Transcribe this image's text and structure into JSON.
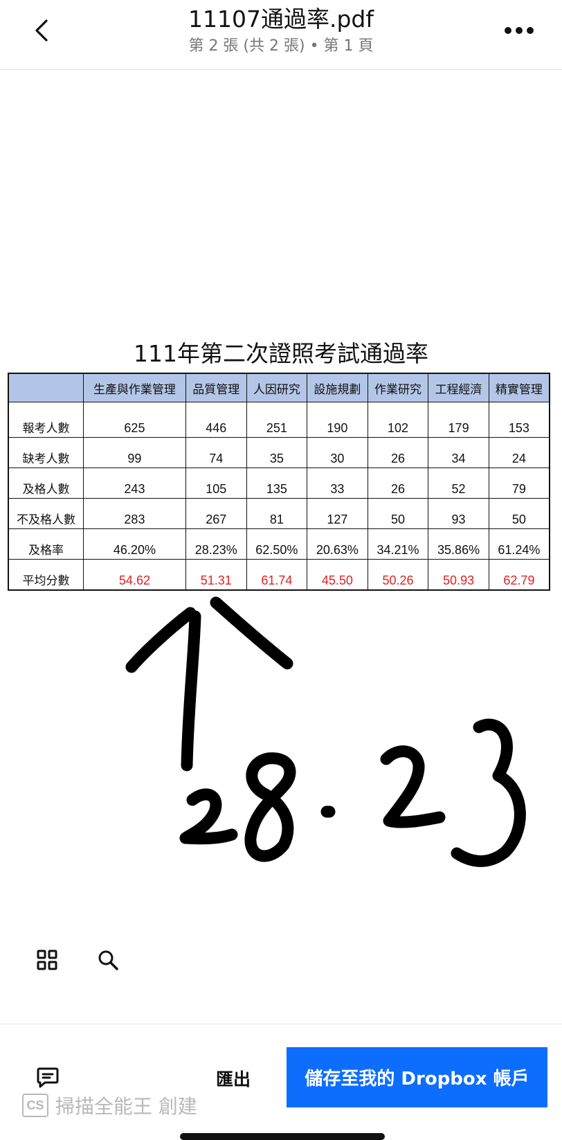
{
  "header": {
    "title": "11107通過率.pdf",
    "subtitle": "第 2 張 (共 2 張) • 第 1 頁"
  },
  "sheet": {
    "title": "111年第二次證照考試通過率",
    "columns": [
      "",
      "生產與作業管理",
      "品質管理",
      "人因研究",
      "設施規劃",
      "作業研究",
      "工程經濟",
      "精實管理"
    ],
    "rows": [
      {
        "label": "報考人數",
        "values": [
          "625",
          "446",
          "251",
          "190",
          "102",
          "179",
          "153"
        ],
        "color": "#111111"
      },
      {
        "label": "缺考人數",
        "values": [
          "99",
          "74",
          "35",
          "30",
          "26",
          "34",
          "24"
        ],
        "color": "#111111"
      },
      {
        "label": "及格人數",
        "values": [
          "243",
          "105",
          "135",
          "33",
          "26",
          "52",
          "79"
        ],
        "color": "#111111"
      },
      {
        "label": "不及格人數",
        "values": [
          "283",
          "267",
          "81",
          "127",
          "50",
          "93",
          "50"
        ],
        "color": "#111111"
      },
      {
        "label": "及格率",
        "values": [
          "46.20%",
          "28.23%",
          "62.50%",
          "20.63%",
          "34.21%",
          "35.86%",
          "61.24%"
        ],
        "color": "#111111"
      },
      {
        "label": "平均分數",
        "values": [
          "54.62",
          "51.31",
          "61.74",
          "45.50",
          "50.26",
          "50.93",
          "62.79"
        ],
        "color": "#e02020"
      }
    ],
    "header_bg": "#b4c6e7"
  },
  "annotation": {
    "handwritten_text": "28.23"
  },
  "toolbar": {
    "grid_icon": "grid-icon",
    "search_icon": "search-icon"
  },
  "footer": {
    "comment_icon": "comment-icon",
    "export_label": "匯出",
    "save_label": "儲存至我的 Dropbox 帳戶",
    "save_color": "#0d6efd"
  },
  "watermark": {
    "logo": "CS",
    "text": "掃描全能王 創建"
  }
}
